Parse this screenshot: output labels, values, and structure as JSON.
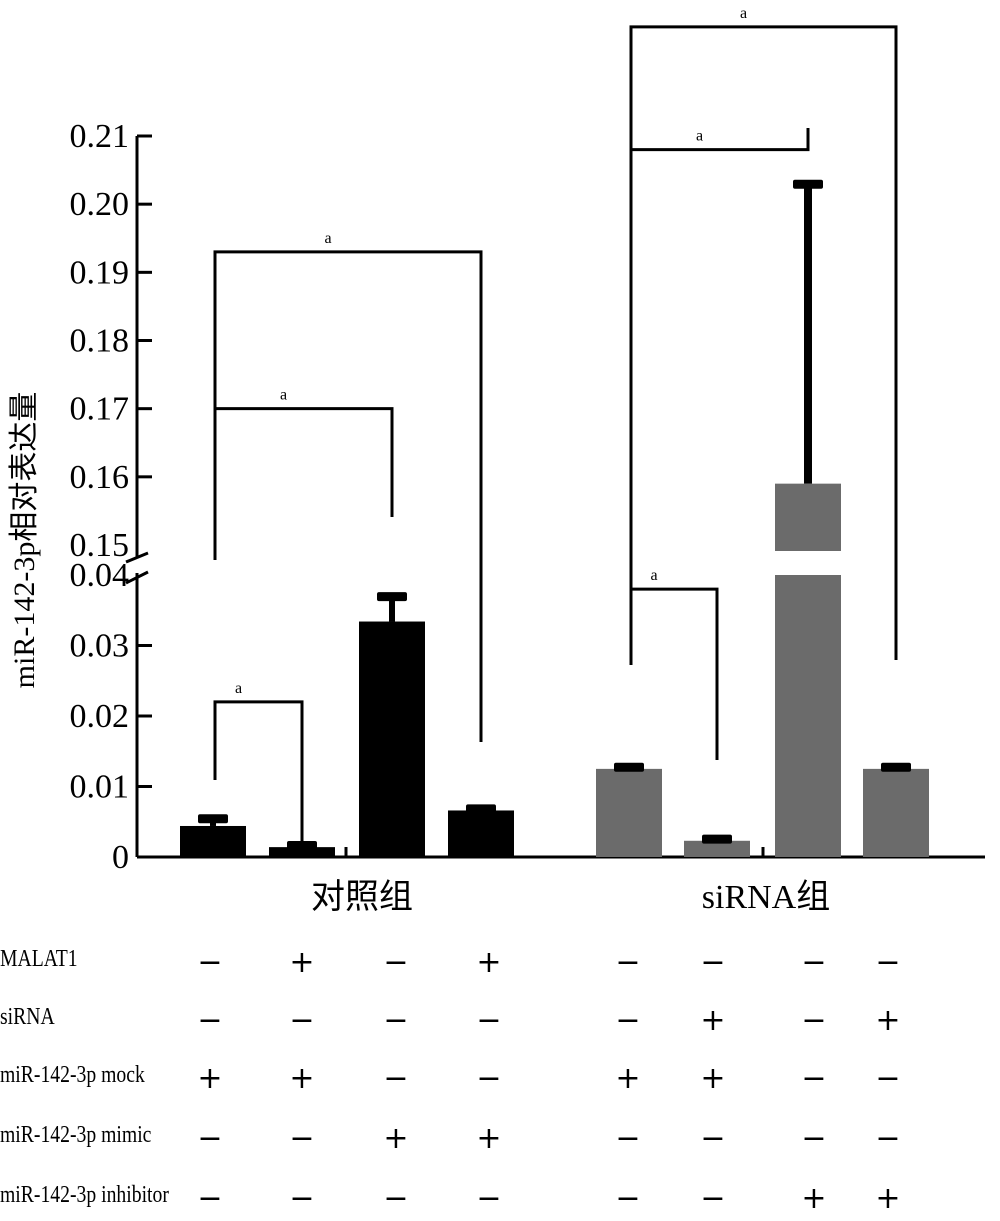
{
  "chart_data": {
    "type": "bar",
    "title": "",
    "ylabel": "miR-142-3p相对表达量",
    "xlabel": "",
    "axis_break": {
      "lower_range": [
        0,
        0.04
      ],
      "upper_range": [
        0.15,
        0.21
      ]
    },
    "lower_ticks": [
      "0",
      "0.01",
      "0.02",
      "0.03",
      "0.04"
    ],
    "upper_ticks": [
      "0.15",
      "0.16",
      "0.17",
      "0.18",
      "0.19",
      "0.20",
      "0.21"
    ],
    "lower_tick_values": [
      0,
      0.01,
      0.02,
      0.03,
      0.04
    ],
    "upper_tick_values": [
      0.15,
      0.16,
      0.17,
      0.18,
      0.19,
      0.2,
      0.21
    ],
    "groups": [
      {
        "name": "对照组",
        "color": "#000000",
        "values": [
          0.0044,
          0.0014,
          0.0334,
          0.0066
        ],
        "errors": [
          0.0011,
          0.0003,
          0.0036,
          0.0003
        ]
      },
      {
        "name": "siRNA组",
        "color": "#6b6b6b",
        "values": [
          0.0125,
          0.0023,
          0.159,
          0.0125
        ],
        "errors": [
          0.0003,
          0.0003,
          0.044,
          0.0003
        ]
      }
    ],
    "significance": [
      {
        "group": 0,
        "from": 0,
        "to": 1,
        "label": "a",
        "level": 0.022
      },
      {
        "group": 0,
        "from": 0,
        "to": 2,
        "label": "a",
        "level": 0.17
      },
      {
        "group": 0,
        "from": 0,
        "to": 3,
        "label": "a",
        "level": 0.193
      },
      {
        "group": 1,
        "from": 0,
        "to": 1,
        "label": "a",
        "level": 0.038
      },
      {
        "group": 1,
        "from": 0,
        "to": 2,
        "label": "a",
        "level": 0.208
      },
      {
        "group": 1,
        "from": 0,
        "to": 3,
        "label": "a",
        "level": 0.226
      }
    ]
  },
  "conditions": {
    "rows": [
      {
        "label": "MALAT1",
        "signs": [
          "−",
          "+",
          "−",
          "+",
          "−",
          "−",
          "−",
          "−"
        ]
      },
      {
        "label": "siRNA",
        "signs": [
          "−",
          "−",
          "−",
          "−",
          "−",
          "+",
          "−",
          "+"
        ]
      },
      {
        "label": "miR-142-3p mock",
        "signs": [
          "+",
          "+",
          "−",
          "−",
          "+",
          "+",
          "−",
          "−"
        ]
      },
      {
        "label": "miR-142-3p mimic",
        "signs": [
          "−",
          "−",
          "+",
          "+",
          "−",
          "−",
          "−",
          "−"
        ]
      },
      {
        "label": "miR-142-3p inhibitor",
        "signs": [
          "−",
          "−",
          "−",
          "−",
          "−",
          "−",
          "+",
          "+"
        ]
      }
    ]
  }
}
